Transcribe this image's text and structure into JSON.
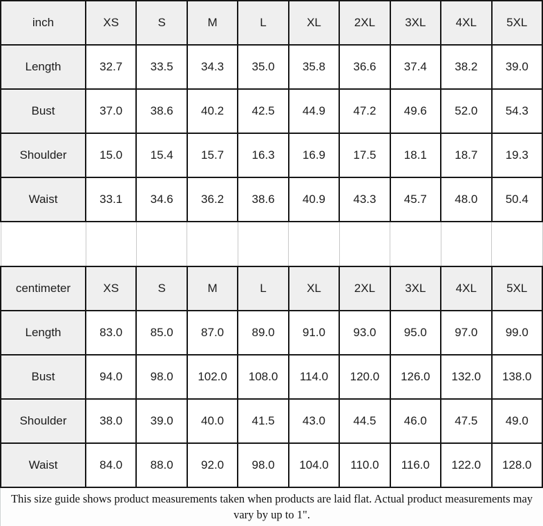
{
  "footer": {
    "note": "This size guide shows product measurements taken when products are laid flat. Actual product measurements may vary by up to 1\"."
  },
  "colors": {
    "header_bg": "#efefef",
    "cell_bg": "#ffffff",
    "grid_border": "#161616",
    "separator_border": "#c8c8c8",
    "text": "#1c1c1c"
  },
  "chart_data": [
    {
      "type": "table",
      "title": "inch",
      "columns": [
        "inch",
        "XS",
        "S",
        "M",
        "L",
        "XL",
        "2XL",
        "3XL",
        "4XL",
        "5XL"
      ],
      "rows": [
        [
          "Length",
          "32.7",
          "33.5",
          "34.3",
          "35.0",
          "35.8",
          "36.6",
          "37.4",
          "38.2",
          "39.0"
        ],
        [
          "Bust",
          "37.0",
          "38.6",
          "40.2",
          "42.5",
          "44.9",
          "47.2",
          "49.6",
          "52.0",
          "54.3"
        ],
        [
          "Shoulder",
          "15.0",
          "15.4",
          "15.7",
          "16.3",
          "16.9",
          "17.5",
          "18.1",
          "18.7",
          "19.3"
        ],
        [
          "Waist",
          "33.1",
          "34.6",
          "36.2",
          "38.6",
          "40.9",
          "43.3",
          "45.7",
          "48.0",
          "50.4"
        ]
      ]
    },
    {
      "type": "table",
      "title": "centimeter",
      "columns": [
        "centimeter",
        "XS",
        "S",
        "M",
        "L",
        "XL",
        "2XL",
        "3XL",
        "4XL",
        "5XL"
      ],
      "rows": [
        [
          "Length",
          "83.0",
          "85.0",
          "87.0",
          "89.0",
          "91.0",
          "93.0",
          "95.0",
          "97.0",
          "99.0"
        ],
        [
          "Bust",
          "94.0",
          "98.0",
          "102.0",
          "108.0",
          "114.0",
          "120.0",
          "126.0",
          "132.0",
          "138.0"
        ],
        [
          "Shoulder",
          "38.0",
          "39.0",
          "40.0",
          "41.5",
          "43.0",
          "44.5",
          "46.0",
          "47.5",
          "49.0"
        ],
        [
          "Waist",
          "84.0",
          "88.0",
          "92.0",
          "98.0",
          "104.0",
          "110.0",
          "116.0",
          "122.0",
          "128.0"
        ]
      ]
    }
  ]
}
